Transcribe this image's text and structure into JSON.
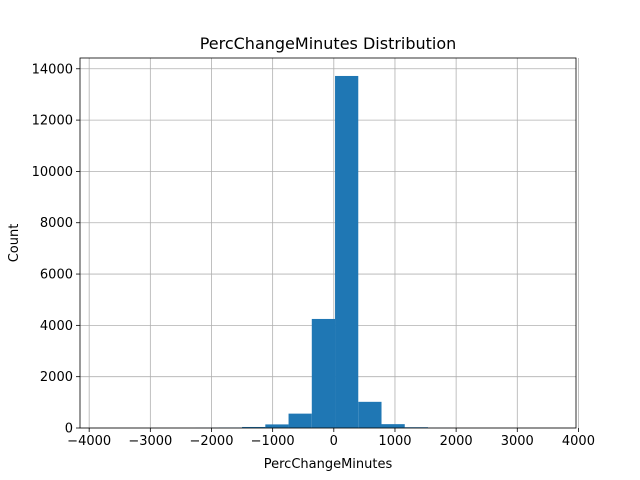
{
  "chart_data": {
    "type": "bar",
    "title": "PercChangeMinutes Distribution",
    "xlabel": "PercChangeMinutes",
    "ylabel": "Count",
    "xlim": [
      -4150,
      3960
    ],
    "ylim": [
      0,
      14420
    ],
    "xticks": [
      -4000,
      -3000,
      -2000,
      -1000,
      0,
      1000,
      2000,
      3000,
      4000
    ],
    "xtick_labels": [
      "−4000",
      "−3000",
      "−2000",
      "−1000",
      "0",
      "1000",
      "2000",
      "3000",
      "4000"
    ],
    "yticks": [
      0,
      2000,
      4000,
      6000,
      8000,
      10000,
      12000,
      14000
    ],
    "ytick_labels": [
      "0",
      "2000",
      "4000",
      "6000",
      "8000",
      "10000",
      "12000",
      "14000"
    ],
    "grid": true,
    "bins": [
      {
        "x0": -3780,
        "x1": -3400,
        "count": 0
      },
      {
        "x0": -3400,
        "x1": -3020,
        "count": 0
      },
      {
        "x0": -3020,
        "x1": -2640,
        "count": 0
      },
      {
        "x0": -2640,
        "x1": -2260,
        "count": 0
      },
      {
        "x0": -2260,
        "x1": -1880,
        "count": 5
      },
      {
        "x0": -1880,
        "x1": -1500,
        "count": 15
      },
      {
        "x0": -1500,
        "x1": -1120,
        "count": 40
      },
      {
        "x0": -1120,
        "x1": -740,
        "count": 140
      },
      {
        "x0": -740,
        "x1": -360,
        "count": 560
      },
      {
        "x0": -360,
        "x1": 20,
        "count": 4250
      },
      {
        "x0": 20,
        "x1": 400,
        "count": 13720
      },
      {
        "x0": 400,
        "x1": 780,
        "count": 1020
      },
      {
        "x0": 780,
        "x1": 1160,
        "count": 150
      },
      {
        "x0": 1160,
        "x1": 1540,
        "count": 30
      },
      {
        "x0": 1540,
        "x1": 1920,
        "count": 5
      },
      {
        "x0": 1920,
        "x1": 2300,
        "count": 0
      },
      {
        "x0": 2300,
        "x1": 2680,
        "count": 0
      },
      {
        "x0": 2680,
        "x1": 3060,
        "count": 0
      },
      {
        "x0": 3060,
        "x1": 3440,
        "count": 0
      },
      {
        "x0": 3440,
        "x1": 3820,
        "count": 0
      }
    ],
    "bar_color": "#1f77b4"
  }
}
